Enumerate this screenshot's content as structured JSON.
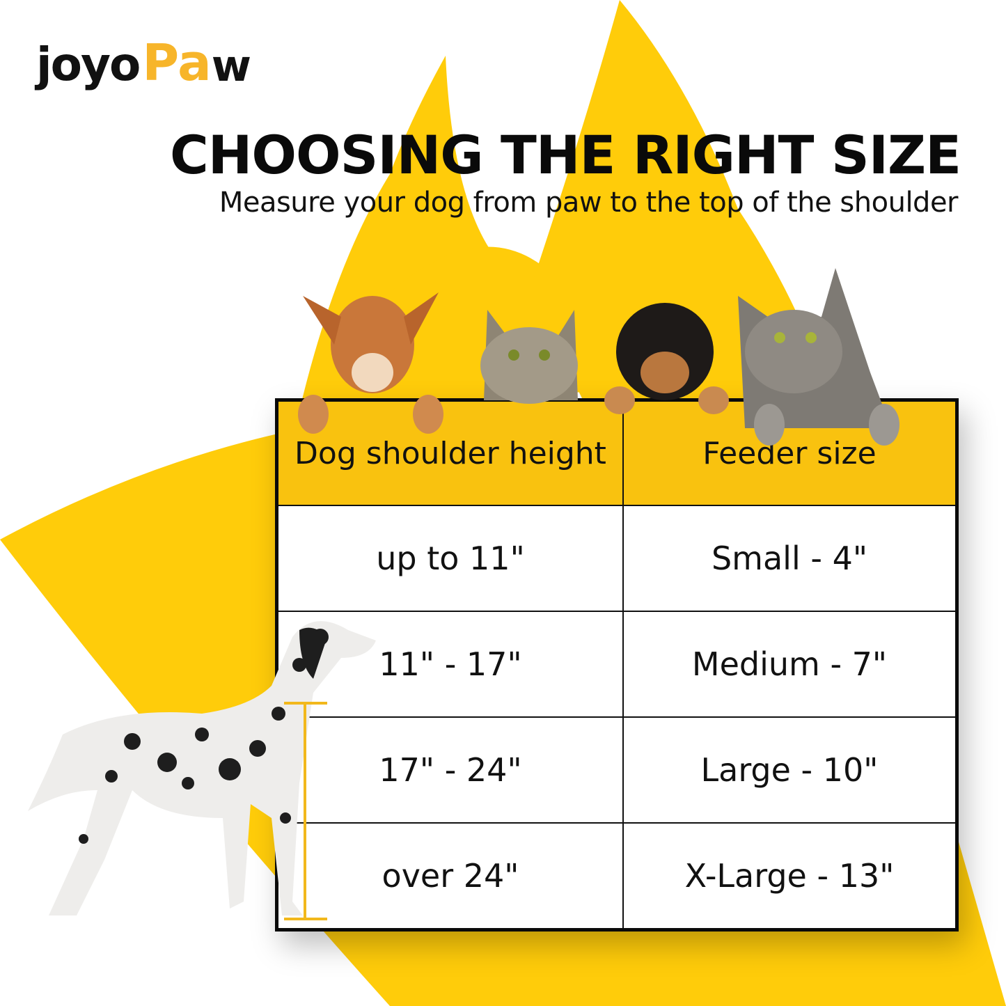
{
  "brand": {
    "logo_text": "JoyoPaw",
    "logo_part1": "joyo",
    "logo_part2": "Pa",
    "logo_part3": "w",
    "accent_color": "#F7B52A"
  },
  "header": {
    "title": "CHOOSING THE RIGHT SIZE",
    "subtitle": "Measure your dog from paw to the top of the shoulder"
  },
  "colors": {
    "background_shape": "#FFCC0A",
    "table_header": "#F9C20F",
    "border": "#0a0a0a"
  },
  "table": {
    "columns": [
      "Dog shoulder height",
      "Feeder size"
    ],
    "rows": [
      [
        "up to 11\"",
        "Small - 4\""
      ],
      [
        "11\" - 17\"",
        "Medium - 7\""
      ],
      [
        "17\" - 24\"",
        "Large - 10\""
      ],
      [
        "over 24\"",
        "X-Large - 13\""
      ]
    ]
  },
  "illustrations": [
    "dog-puppy",
    "tabby-cat",
    "rottweiler-puppy",
    "grey-cat",
    "dalmatian-measuring"
  ]
}
